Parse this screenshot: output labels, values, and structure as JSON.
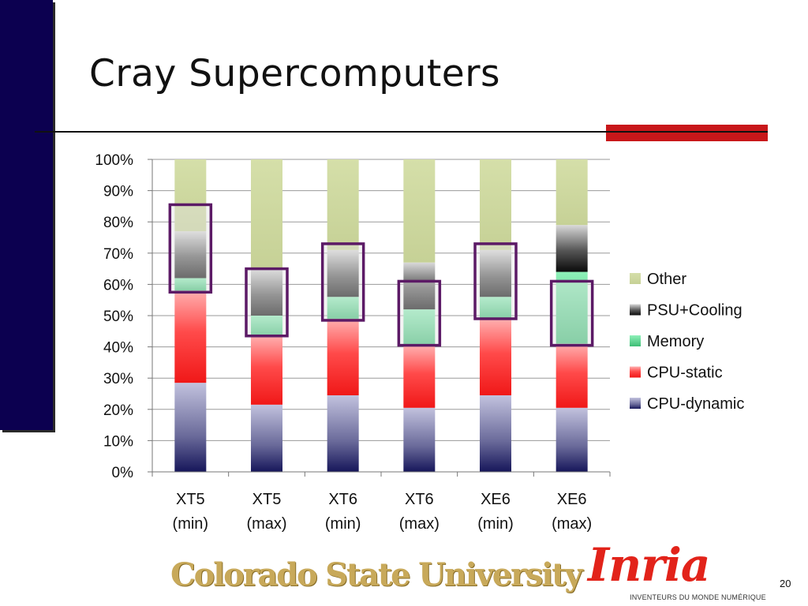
{
  "slide": {
    "title": "Cray Supercomputers",
    "page_number": "20"
  },
  "logos": {
    "csu": "Colorado State University",
    "inria": "Inria",
    "inria_tagline": "INVENTEURS DU MONDE NUMÉRIQUE"
  },
  "colors": {
    "left_bar": "#0c0050",
    "accent_red": "#c8171a",
    "highlight_box": "#5c1a66",
    "other": "#cfd9a0",
    "psu_cooling": "#1a1a1a",
    "memory": "#4fd68a",
    "cpu_static": "#ff3b3b",
    "cpu_dynamic": "#2a2a6a"
  },
  "chart_data": {
    "type": "bar",
    "stacked": true,
    "title": "",
    "xlabel": "",
    "ylabel": "",
    "ylim": [
      0,
      100
    ],
    "yticks": [
      "0%",
      "10%",
      "20%",
      "30%",
      "40%",
      "50%",
      "60%",
      "70%",
      "80%",
      "90%",
      "100%"
    ],
    "grid": true,
    "legend_position": "right",
    "categories": [
      [
        "XT5",
        "(min)"
      ],
      [
        "XT5",
        "(max)"
      ],
      [
        "XT6",
        "(min)"
      ],
      [
        "XT6",
        "(max)"
      ],
      [
        "XE6",
        "(min)"
      ],
      [
        "XE6",
        "(max)"
      ]
    ],
    "series": [
      {
        "name": "CPU-dynamic",
        "values": [
          28.5,
          21.5,
          24.5,
          20.5,
          24.5,
          20.5
        ]
      },
      {
        "name": "CPU-static",
        "values": [
          29.5,
          22.0,
          24.5,
          20.0,
          24.5,
          20.5
        ]
      },
      {
        "name": "Memory",
        "values": [
          4.0,
          6.5,
          7.0,
          11.5,
          7.0,
          23.0
        ]
      },
      {
        "name": "PSU+Cooling",
        "values": [
          15.0,
          15.0,
          15.0,
          15.0,
          15.0,
          15.0
        ]
      },
      {
        "name": "Other",
        "values": [
          23.0,
          35.0,
          29.0,
          33.0,
          29.0,
          21.0
        ]
      }
    ],
    "legend_order": [
      "Other",
      "PSU+Cooling",
      "Memory",
      "CPU-static",
      "CPU-dynamic"
    ],
    "highlight_ranges": [
      {
        "category": 0,
        "from": 57.5,
        "to": 85.5
      },
      {
        "category": 1,
        "from": 43.5,
        "to": 65.0
      },
      {
        "category": 2,
        "from": 48.5,
        "to": 73.0
      },
      {
        "category": 3,
        "from": 40.5,
        "to": 61.0
      },
      {
        "category": 4,
        "from": 49.0,
        "to": 73.0
      },
      {
        "category": 5,
        "from": 40.5,
        "to": 61.0
      }
    ]
  }
}
